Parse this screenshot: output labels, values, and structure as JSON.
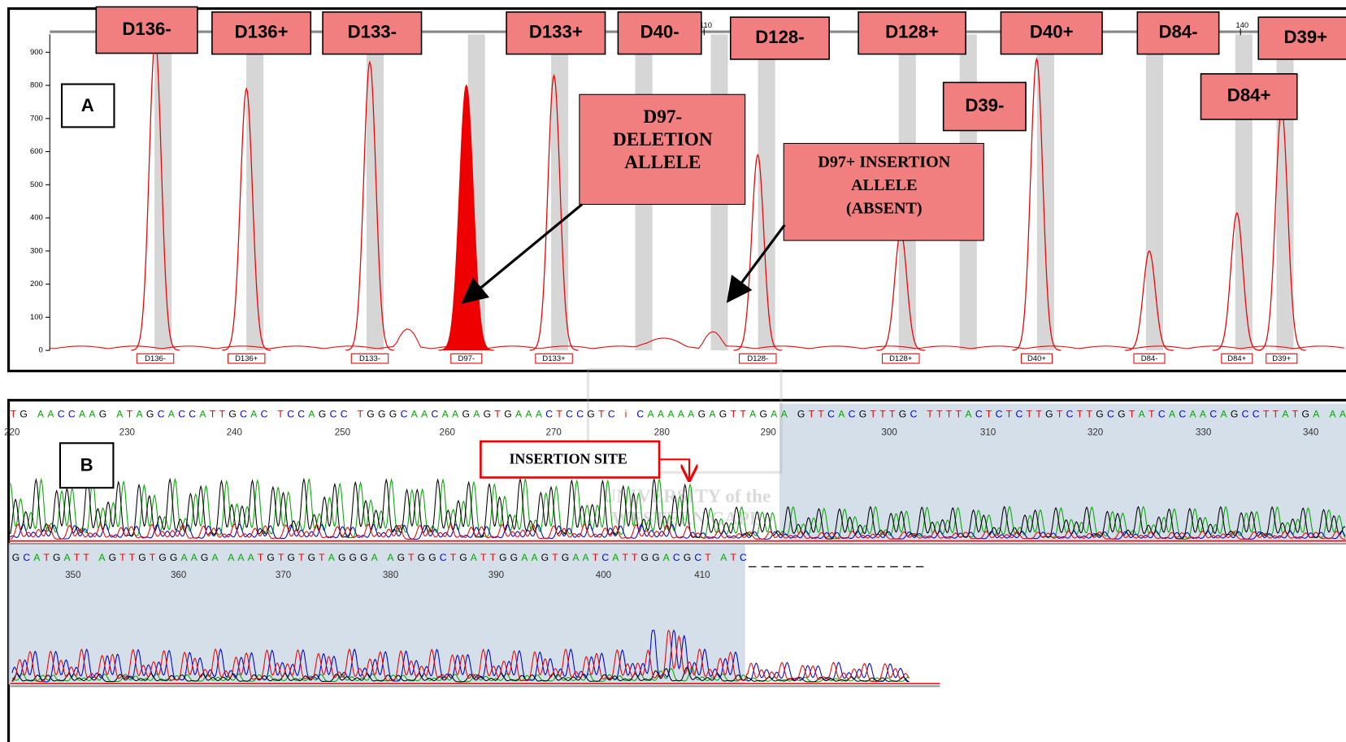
{
  "panel_a": {
    "label": "A",
    "ylim": [
      0,
      954
    ],
    "yticks": [
      0,
      100,
      200,
      300,
      400,
      500,
      600,
      700,
      800,
      900
    ],
    "xlim": [
      73.4,
      145.9
    ],
    "xticks": [
      110,
      140
    ],
    "peaks": [
      {
        "bin": "D136-",
        "x": 79.3,
        "height": 940
      },
      {
        "bin": "D136+",
        "x": 84.4,
        "height": 790
      },
      {
        "bin": "D133-",
        "x": 91.3,
        "height": 870
      },
      {
        "bin": "D97-",
        "x": 96.7,
        "height": 800,
        "filled": true
      },
      {
        "bin": "D133+",
        "x": 101.6,
        "height": 830
      },
      {
        "bin": "D128-",
        "x": 113.0,
        "height": 590
      },
      {
        "bin": "D128+",
        "x": 121.0,
        "height": 360
      },
      {
        "bin": "D40+",
        "x": 128.6,
        "height": 880
      },
      {
        "bin": "D84-",
        "x": 134.9,
        "height": 300
      },
      {
        "bin": "D84+",
        "x": 139.8,
        "height": 415
      },
      {
        "bin": "D39+",
        "x": 142.3,
        "height": 730
      }
    ],
    "marker_labels": [
      "D136-",
      "D136+",
      "D133-",
      "D133+",
      "D40-",
      "D128-",
      "D128+",
      "D40+",
      "D84-",
      "D39+",
      "D39-",
      "D84+"
    ],
    "annotations": [
      {
        "lines": [
          "D97-",
          "DELETION",
          "ALLELE"
        ]
      },
      {
        "lines": [
          "D97+ INSERTION",
          "ALLELE",
          "(ABSENT)"
        ]
      }
    ]
  },
  "panel_b": {
    "label": "B",
    "insertion_label": "INSERTION SITE",
    "rows": [
      {
        "sequence": "TG AACCAAG ATAGCACCATTGCAC TCCAGCC TGGGCAACAAGAGTGAAACTCCGTC i CAAAAAGAGTTAGAA  GTTCACGTTTGC TTTTACTCTCTTGTCTTGCGTATCACAACAGCCTTATGA AA",
        "positions": [
          220,
          230,
          240,
          250,
          260,
          270,
          280,
          290,
          300,
          310,
          320,
          330,
          340
        ]
      },
      {
        "sequence": "GCATGATT AGTTGTGGAAGA AAATGTGTGTAGGGA AGTGGCTGATTGGAAGTGAATCATTGGACGCT ATC",
        "positions": [
          350,
          360,
          370,
          380,
          390,
          400,
          410
        ]
      }
    ],
    "watermark": [
      "UNIVERSITY of the",
      "WESTERN CAPE"
    ]
  }
}
